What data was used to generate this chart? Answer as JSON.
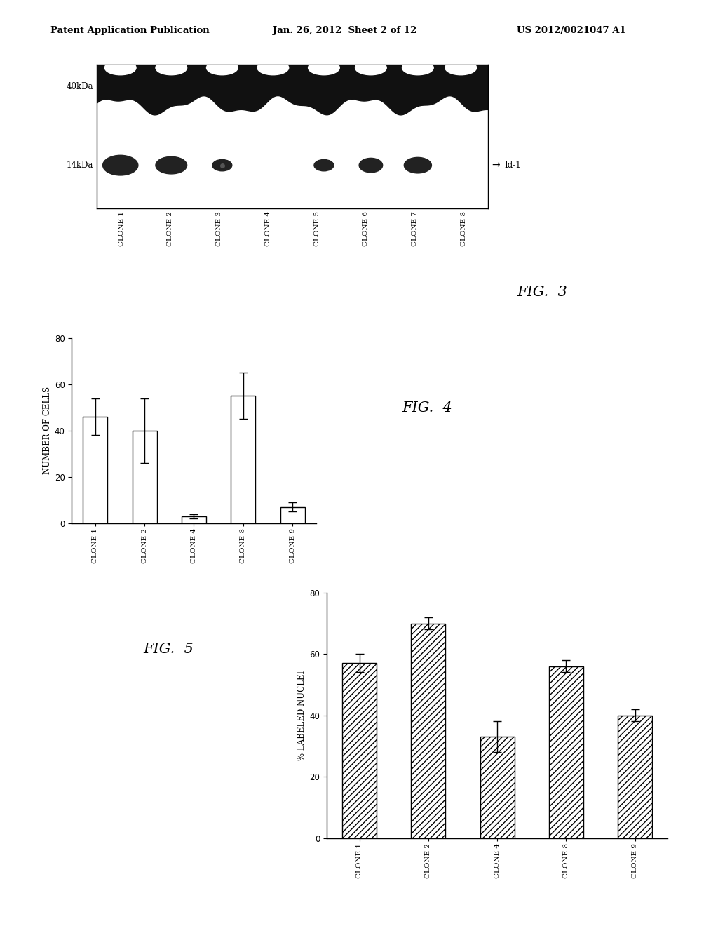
{
  "header_left": "Patent Application Publication",
  "header_mid": "Jan. 26, 2012  Sheet 2 of 12",
  "header_right": "US 2012/0021047 A1",
  "fig3_label": "FIG.  3",
  "fig4_label": "FIG.  4",
  "fig5_label": "FIG.  5",
  "western_blot": {
    "label_40kDa": "40kDa",
    "label_14kDa": "14kDa",
    "label_Id1": "Id-1",
    "clone_labels": [
      "CLONE 1",
      "CLONE 2",
      "CLONE 3",
      "CLONE 4",
      "CLONE 5",
      "CLONE 6",
      "CLONE 7",
      "CLONE 8"
    ]
  },
  "fig4_data": {
    "categories": [
      "CLONE 1",
      "CLONE 2",
      "CLONE 4",
      "CLONE 8",
      "CLONE 9"
    ],
    "values": [
      46,
      40,
      3,
      55,
      7
    ],
    "errors": [
      8,
      14,
      1,
      10,
      2
    ],
    "ylabel": "NUMBER OF CELLS",
    "ylim": [
      0,
      80
    ],
    "yticks": [
      0,
      20,
      40,
      60,
      80
    ]
  },
  "fig5_data": {
    "categories": [
      "CLONE 1",
      "CLONE 2",
      "CLONE 4",
      "CLONE 8",
      "CLONE 9"
    ],
    "values": [
      57,
      70,
      33,
      56,
      40
    ],
    "errors": [
      3,
      2,
      5,
      2,
      2
    ],
    "ylabel": "% LABELED NUCLEI",
    "ylim": [
      0,
      80
    ],
    "yticks": [
      0,
      20,
      40,
      60,
      80
    ]
  },
  "bg_color": "#ffffff",
  "bar_color": "#ffffff",
  "bar_edge_color": "#000000",
  "hatch_pattern": "////"
}
